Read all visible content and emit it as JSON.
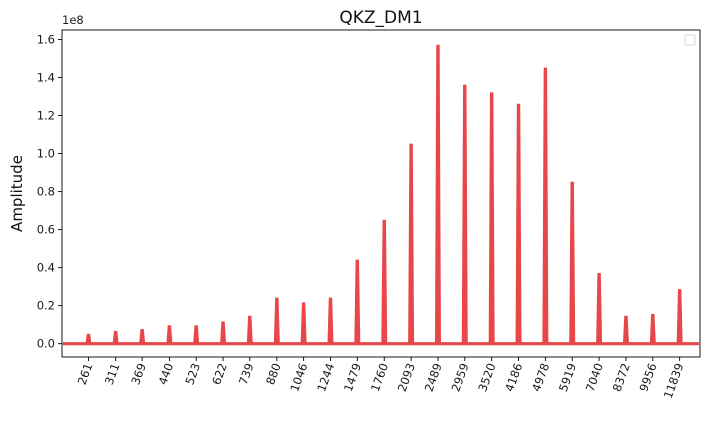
{
  "chart_data": {
    "type": "line",
    "title": "QKZ_DM1",
    "ylabel": "Amplitude",
    "xlabel": "",
    "y_scale_label": "1e8",
    "y_multiplier": 100000000,
    "ylim": [
      -0.07,
      1.65
    ],
    "yticks": [
      0.0,
      0.2,
      0.4,
      0.6,
      0.8,
      1.0,
      1.2,
      1.4,
      1.6
    ],
    "ytick_labels": [
      "0.0",
      "0.2",
      "0.4",
      "0.6",
      "0.8",
      "1.0",
      "1.2",
      "1.4",
      "1.6"
    ],
    "x_scale": "log",
    "xlim": [
      220,
      13500
    ],
    "xticks": [
      261,
      311,
      369,
      440,
      523,
      622,
      739,
      880,
      1046,
      1244,
      1479,
      1760,
      2093,
      2489,
      2959,
      3520,
      4186,
      4978,
      5919,
      7040,
      8372,
      9956,
      11839
    ],
    "xtick_labels": [
      "261",
      "311",
      "369",
      "440",
      "523",
      "622",
      "739",
      "880",
      "1046",
      "1244",
      "1479",
      "1760",
      "2093",
      "2489",
      "2959",
      "3520",
      "4186",
      "4978",
      "5919",
      "7040",
      "8372",
      "9956",
      "11839"
    ],
    "legend": "top-right",
    "grid": false,
    "series": [
      {
        "color": "#e8474a",
        "x": [
          261,
          311,
          369,
          440,
          523,
          622,
          739,
          880,
          1046,
          1244,
          1479,
          1760,
          2093,
          2489,
          2959,
          3520,
          4186,
          4978,
          5919,
          7040,
          8372,
          9956,
          11839
        ],
        "values": [
          0.05,
          0.065,
          0.075,
          0.095,
          0.095,
          0.115,
          0.145,
          0.24,
          0.215,
          0.24,
          0.44,
          0.65,
          1.05,
          1.57,
          1.36,
          1.32,
          1.26,
          1.45,
          0.85,
          0.37,
          0.145,
          0.155,
          0.285
        ]
      }
    ]
  }
}
